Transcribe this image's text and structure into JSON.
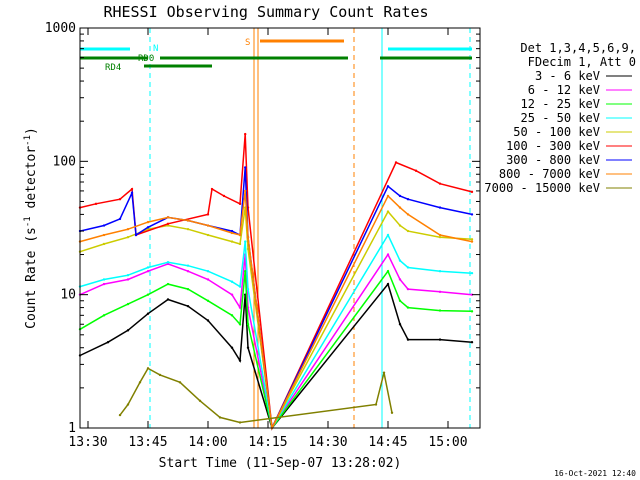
{
  "chart_data": {
    "type": "line",
    "title": "RHESSI Observing Summary Count Rates",
    "xlabel": "Start Time (11-Sep-07 13:28:02)",
    "ylabel_main": "Count Rate (s",
    "ylabel_sup1": "-1",
    "ylabel_mid": " detector",
    "ylabel_sup2": "-1",
    "ylabel_end": ")",
    "footer": "16-Oct-2021 12:40",
    "x_unit": "minutes since 13:28:02",
    "xlim": [
      0,
      100
    ],
    "ylim": [
      1,
      1000
    ],
    "yscale": "log",
    "x_ticks": [
      {
        "label": "13:30",
        "value": 2
      },
      {
        "label": "13:45",
        "value": 17
      },
      {
        "label": "14:00",
        "value": 32
      },
      {
        "label": "14:15",
        "value": 47
      },
      {
        "label": "14:30",
        "value": 62
      },
      {
        "label": "14:45",
        "value": 77
      },
      {
        "label": "15:00",
        "value": 92
      }
    ],
    "y_ticks": [
      {
        "label": "1",
        "value": 1
      },
      {
        "label": "10",
        "value": 10
      },
      {
        "label": "100",
        "value": 100
      },
      {
        "label": "1000",
        "value": 1000
      }
    ],
    "legend_header": [
      "Det 1,3,4,5,6,9,",
      "FDecim 1, Att 0"
    ],
    "legend_position": "right",
    "series": [
      {
        "name": "3 - 6 keV",
        "color": "#000000",
        "data": [
          [
            0,
            3.5
          ],
          [
            7,
            4.4
          ],
          [
            12,
            5.4
          ],
          [
            17,
            7.2
          ],
          [
            22,
            9.2
          ],
          [
            27,
            8.2
          ],
          [
            32,
            6.4
          ],
          [
            38,
            4.0
          ],
          [
            40,
            3.2
          ],
          [
            41.3,
            10
          ],
          [
            42,
            4
          ],
          [
            48,
            1
          ],
          [
            77,
            12
          ],
          [
            80,
            6
          ],
          [
            82,
            4.6
          ],
          [
            90,
            4.6
          ],
          [
            98,
            4.4
          ]
        ]
      },
      {
        "name": "6 - 12 keV",
        "color": "#ff00ff",
        "data": [
          [
            0,
            10
          ],
          [
            6,
            12
          ],
          [
            12,
            13
          ],
          [
            17,
            15
          ],
          [
            22,
            17
          ],
          [
            27,
            15
          ],
          [
            32,
            13
          ],
          [
            38,
            10
          ],
          [
            40,
            8
          ],
          [
            41.3,
            20
          ],
          [
            42,
            8
          ],
          [
            48,
            1
          ],
          [
            77,
            20
          ],
          [
            80,
            13
          ],
          [
            82,
            11
          ],
          [
            90,
            10.5
          ],
          [
            98,
            10
          ]
        ]
      },
      {
        "name": "12 - 25 keV",
        "color": "#00ff00",
        "data": [
          [
            0,
            5.5
          ],
          [
            6,
            7
          ],
          [
            12,
            8.5
          ],
          [
            17,
            10
          ],
          [
            22,
            12
          ],
          [
            27,
            11
          ],
          [
            32,
            9
          ],
          [
            38,
            7
          ],
          [
            40,
            6
          ],
          [
            41.3,
            15
          ],
          [
            42,
            6
          ],
          [
            48,
            1
          ],
          [
            77,
            15
          ],
          [
            80,
            9
          ],
          [
            82,
            8
          ],
          [
            90,
            7.6
          ],
          [
            98,
            7.5
          ]
        ]
      },
      {
        "name": "25 - 50 keV",
        "color": "#00ffff",
        "data": [
          [
            0,
            11.5
          ],
          [
            6,
            13
          ],
          [
            12,
            14
          ],
          [
            17,
            16
          ],
          [
            22,
            17.5
          ],
          [
            27,
            16.5
          ],
          [
            32,
            15
          ],
          [
            38,
            12.5
          ],
          [
            40,
            11.5
          ],
          [
            41.3,
            25
          ],
          [
            42,
            11
          ],
          [
            48,
            1
          ],
          [
            77,
            28
          ],
          [
            80,
            18
          ],
          [
            82,
            16
          ],
          [
            90,
            15
          ],
          [
            98,
            14.5
          ]
        ]
      },
      {
        "name": "50 - 100 keV",
        "color": "#cccc00",
        "data": [
          [
            0,
            21
          ],
          [
            6,
            24
          ],
          [
            12,
            27
          ],
          [
            17,
            31
          ],
          [
            22,
            33
          ],
          [
            27,
            31
          ],
          [
            32,
            28
          ],
          [
            38,
            25
          ],
          [
            40,
            24
          ],
          [
            41.3,
            45
          ],
          [
            42,
            22
          ],
          [
            48,
            1
          ],
          [
            77,
            42
          ],
          [
            80,
            33
          ],
          [
            82,
            30
          ],
          [
            90,
            27
          ],
          [
            98,
            26
          ]
        ]
      },
      {
        "name": "100 - 300 keV",
        "color": "#ff0000",
        "data": [
          [
            0,
            45
          ],
          [
            4,
            48
          ],
          [
            10,
            52
          ],
          [
            13,
            62
          ],
          [
            14,
            28
          ],
          [
            22,
            34
          ],
          [
            32,
            40
          ],
          [
            33,
            62
          ],
          [
            36,
            55
          ],
          [
            40,
            48
          ],
          [
            41.3,
            160
          ],
          [
            42,
            45
          ],
          [
            48,
            1
          ],
          [
            79,
            98
          ],
          [
            84,
            85
          ],
          [
            90,
            68
          ],
          [
            98,
            59
          ]
        ]
      },
      {
        "name": "300 - 800 keV",
        "color": "#0000ff",
        "data": [
          [
            0,
            30
          ],
          [
            6,
            33
          ],
          [
            10,
            37
          ],
          [
            13,
            58
          ],
          [
            14,
            28
          ],
          [
            17,
            32
          ],
          [
            22,
            38
          ],
          [
            27,
            36
          ],
          [
            32,
            33
          ],
          [
            38,
            30
          ],
          [
            40,
            28
          ],
          [
            41.3,
            90
          ],
          [
            42,
            27
          ],
          [
            48,
            1
          ],
          [
            77,
            65
          ],
          [
            80,
            55
          ],
          [
            82,
            52
          ],
          [
            90,
            45
          ],
          [
            98,
            40
          ]
        ]
      },
      {
        "name": "800 - 7000 keV",
        "color": "#ff8000",
        "data": [
          [
            0,
            25
          ],
          [
            6,
            28
          ],
          [
            12,
            31
          ],
          [
            17,
            35
          ],
          [
            22,
            38
          ],
          [
            27,
            36
          ],
          [
            32,
            33
          ],
          [
            38,
            29
          ],
          [
            40,
            28
          ],
          [
            41.3,
            60
          ],
          [
            42,
            27
          ],
          [
            48,
            1
          ],
          [
            77,
            55
          ],
          [
            80,
            45
          ],
          [
            82,
            40
          ],
          [
            90,
            28
          ],
          [
            98,
            25
          ]
        ]
      },
      {
        "name": "7000 - 15000 keV",
        "color": "#808000",
        "data": [
          [
            10,
            1.25
          ],
          [
            12,
            1.5
          ],
          [
            15,
            2.2
          ],
          [
            17,
            2.8
          ],
          [
            20,
            2.5
          ],
          [
            25,
            2.2
          ],
          [
            30,
            1.6
          ],
          [
            35,
            1.2
          ],
          [
            40,
            1.1
          ],
          [
            74,
            1.5
          ],
          [
            76,
            2.6
          ],
          [
            78,
            1.3
          ]
        ]
      }
    ],
    "annotations": [
      {
        "label": "N",
        "color": "#00ffff",
        "row": 1,
        "segments": [
          [
            0,
            12.5
          ],
          [
            77,
            98
          ]
        ]
      },
      {
        "label": "S",
        "color": "#ff8000",
        "row": 0,
        "segments": [
          [
            45,
            66
          ]
        ]
      },
      {
        "label": "RD0",
        "color": "#008000",
        "row": 2,
        "segments": [
          [
            0,
            17
          ],
          [
            20,
            67
          ],
          [
            75,
            98
          ]
        ]
      },
      {
        "label": "RD4",
        "color": "#008000",
        "row": 3,
        "segments": [
          [
            16,
            33
          ]
        ]
      }
    ],
    "vertical_lines": [
      {
        "x": 0,
        "color": "#00ffff",
        "dashed": false
      },
      {
        "x": 17.5,
        "color": "#00ffff",
        "dashed": true
      },
      {
        "x": 43.5,
        "color": "#ff8000",
        "dashed": false
      },
      {
        "x": 44.5,
        "color": "#ff8000",
        "dashed": false
      },
      {
        "x": 68.5,
        "color": "#ff8000",
        "dashed": true
      },
      {
        "x": 75.5,
        "color": "#00ffff",
        "dashed": false
      },
      {
        "x": 97.5,
        "color": "#00ffff",
        "dashed": true
      }
    ]
  }
}
